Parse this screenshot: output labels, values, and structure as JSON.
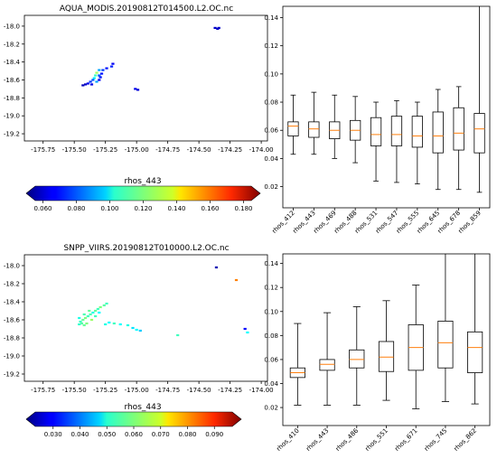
{
  "chart_data": [
    {
      "type": "scatter",
      "title": "AQUA_MODIS.20190812T014500.L2.OC.nc",
      "xlim": [
        -175.9,
        -173.95
      ],
      "ylim": [
        -19.28,
        -17.88
      ],
      "xticks": [
        -175.75,
        -175.5,
        -175.25,
        -175.0,
        -174.75,
        -174.5,
        -174.25,
        -174.0
      ],
      "xtick_labels": [
        "-175.75",
        "-175.50",
        "-175.25",
        "-175.00",
        "-174.75",
        "-174.50",
        "-174.25",
        "-174.00"
      ],
      "yticks": [
        -18.0,
        -18.2,
        -18.4,
        -18.6,
        -18.8,
        -19.0,
        -19.2
      ],
      "ytick_labels": [
        "-18.0",
        "-18.2",
        "-18.4",
        "-18.6",
        "-18.8",
        "-19.0",
        "-19.2"
      ],
      "colorbar": {
        "label": "rhos_443",
        "min": 0.05,
        "max": 0.19,
        "ticks": [
          0.06,
          0.08,
          0.1,
          0.12,
          0.14,
          0.16,
          0.18
        ],
        "tick_labels": [
          "0.060",
          "0.080",
          "0.100",
          "0.120",
          "0.140",
          "0.160",
          "0.180"
        ]
      },
      "points": [
        {
          "x": -174.37,
          "y": -18.02,
          "v": 0.06
        },
        {
          "x": -174.34,
          "y": -18.02,
          "v": 0.06
        },
        {
          "x": -174.35,
          "y": -18.03,
          "v": 0.06
        },
        {
          "x": -175.01,
          "y": -18.7,
          "v": 0.065
        },
        {
          "x": -174.99,
          "y": -18.71,
          "v": 0.062
        },
        {
          "x": -175.19,
          "y": -18.42,
          "v": 0.066
        },
        {
          "x": -175.2,
          "y": -18.45,
          "v": 0.072
        },
        {
          "x": -175.24,
          "y": -18.47,
          "v": 0.07
        },
        {
          "x": -175.27,
          "y": -18.49,
          "v": 0.075
        },
        {
          "x": -175.3,
          "y": -18.49,
          "v": 0.09
        },
        {
          "x": -175.32,
          "y": -18.52,
          "v": 0.125
        },
        {
          "x": -175.33,
          "y": -18.55,
          "v": 0.11
        },
        {
          "x": -175.3,
          "y": -18.55,
          "v": 0.08
        },
        {
          "x": -175.28,
          "y": -18.53,
          "v": 0.07
        },
        {
          "x": -175.34,
          "y": -18.58,
          "v": 0.1
        },
        {
          "x": -175.35,
          "y": -18.6,
          "v": 0.08
        },
        {
          "x": -175.32,
          "y": -18.62,
          "v": 0.09
        },
        {
          "x": -175.37,
          "y": -18.62,
          "v": 0.075
        },
        {
          "x": -175.39,
          "y": -18.64,
          "v": 0.065
        },
        {
          "x": -175.41,
          "y": -18.65,
          "v": 0.06
        },
        {
          "x": -175.43,
          "y": -18.66,
          "v": 0.058
        },
        {
          "x": -175.36,
          "y": -18.65,
          "v": 0.064
        },
        {
          "x": -175.3,
          "y": -18.6,
          "v": 0.066
        },
        {
          "x": -175.29,
          "y": -18.57,
          "v": 0.07
        }
      ]
    },
    {
      "type": "box",
      "categories": [
        "rhos_412",
        "rhos_443",
        "rhos_469",
        "rhos_488",
        "rhos_531",
        "rhos_547",
        "rhos_555",
        "rhos_645",
        "rhos_678",
        "rhos_859"
      ],
      "ylim": [
        0.005,
        0.148
      ],
      "yticks": [
        0.02,
        0.04,
        0.06,
        0.08,
        0.1,
        0.12,
        0.14
      ],
      "ytick_labels": [
        "0.02",
        "0.04",
        "0.06",
        "0.08",
        "0.10",
        "0.12",
        "0.14"
      ],
      "boxes": [
        {
          "whislo": 0.043,
          "q1": 0.056,
          "med": 0.063,
          "q3": 0.066,
          "whishi": 0.085
        },
        {
          "whislo": 0.043,
          "q1": 0.055,
          "med": 0.061,
          "q3": 0.066,
          "whishi": 0.087
        },
        {
          "whislo": 0.04,
          "q1": 0.054,
          "med": 0.06,
          "q3": 0.066,
          "whishi": 0.085
        },
        {
          "whislo": 0.037,
          "q1": 0.053,
          "med": 0.06,
          "q3": 0.067,
          "whishi": 0.084
        },
        {
          "whislo": 0.024,
          "q1": 0.049,
          "med": 0.057,
          "q3": 0.069,
          "whishi": 0.08
        },
        {
          "whislo": 0.023,
          "q1": 0.049,
          "med": 0.057,
          "q3": 0.07,
          "whishi": 0.081
        },
        {
          "whislo": 0.022,
          "q1": 0.048,
          "med": 0.056,
          "q3": 0.07,
          "whishi": 0.08
        },
        {
          "whislo": 0.018,
          "q1": 0.044,
          "med": 0.056,
          "q3": 0.073,
          "whishi": 0.089
        },
        {
          "whislo": 0.018,
          "q1": 0.046,
          "med": 0.058,
          "q3": 0.076,
          "whishi": 0.091
        },
        {
          "whislo": 0.016,
          "q1": 0.044,
          "med": 0.061,
          "q3": 0.072,
          "whishi": 0.15
        }
      ]
    },
    {
      "type": "scatter",
      "title": "SNPP_VIIRS.20190812T010000.L2.OC.nc",
      "xlim": [
        -175.9,
        -173.95
      ],
      "ylim": [
        -19.28,
        -17.88
      ],
      "xticks": [
        -175.75,
        -175.5,
        -175.25,
        -175.0,
        -174.75,
        -174.5,
        -174.25,
        -174.0
      ],
      "xtick_labels": [
        "-175.75",
        "-175.50",
        "-175.25",
        "-175.00",
        "-174.75",
        "-174.50",
        "-174.25",
        "-174.00"
      ],
      "yticks": [
        -18.0,
        -18.2,
        -18.4,
        -18.6,
        -18.8,
        -19.0,
        -19.2
      ],
      "ytick_labels": [
        "-18.0",
        "-18.2",
        "-18.4",
        "-18.6",
        "-18.8",
        "-19.0",
        "-19.2"
      ],
      "colorbar": {
        "label": "rhos_443",
        "min": 0.02,
        "max": 0.1,
        "ticks": [
          0.03,
          0.04,
          0.05,
          0.06,
          0.07,
          0.08,
          0.09
        ],
        "tick_labels": [
          "0.030",
          "0.040",
          "0.050",
          "0.060",
          "0.070",
          "0.080",
          "0.090"
        ]
      },
      "points": [
        {
          "x": -174.36,
          "y": -18.02,
          "v": 0.024
        },
        {
          "x": -174.2,
          "y": -18.16,
          "v": 0.08
        },
        {
          "x": -174.13,
          "y": -18.7,
          "v": 0.03
        },
        {
          "x": -174.11,
          "y": -18.74,
          "v": 0.05
        },
        {
          "x": -174.67,
          "y": -18.77,
          "v": 0.055
        },
        {
          "x": -175.24,
          "y": -18.42,
          "v": 0.055
        },
        {
          "x": -175.26,
          "y": -18.44,
          "v": 0.057
        },
        {
          "x": -175.29,
          "y": -18.46,
          "v": 0.06
        },
        {
          "x": -175.31,
          "y": -18.48,
          "v": 0.055
        },
        {
          "x": -175.33,
          "y": -18.5,
          "v": 0.058
        },
        {
          "x": -175.35,
          "y": -18.52,
          "v": 0.052
        },
        {
          "x": -175.37,
          "y": -18.54,
          "v": 0.056
        },
        {
          "x": -175.39,
          "y": -18.56,
          "v": 0.055
        },
        {
          "x": -175.41,
          "y": -18.58,
          "v": 0.06
        },
        {
          "x": -175.43,
          "y": -18.6,
          "v": 0.058
        },
        {
          "x": -175.45,
          "y": -18.62,
          "v": 0.055
        },
        {
          "x": -175.44,
          "y": -18.64,
          "v": 0.057
        },
        {
          "x": -175.4,
          "y": -18.64,
          "v": 0.06
        },
        {
          "x": -175.36,
          "y": -18.6,
          "v": 0.062
        },
        {
          "x": -175.33,
          "y": -18.56,
          "v": 0.055
        },
        {
          "x": -175.3,
          "y": -18.52,
          "v": 0.05
        },
        {
          "x": -175.38,
          "y": -18.5,
          "v": 0.058
        },
        {
          "x": -175.42,
          "y": -18.54,
          "v": 0.056
        },
        {
          "x": -175.46,
          "y": -18.58,
          "v": 0.052
        },
        {
          "x": -175.46,
          "y": -18.65,
          "v": 0.054
        },
        {
          "x": -175.42,
          "y": -18.66,
          "v": 0.058
        },
        {
          "x": -175.25,
          "y": -18.65,
          "v": 0.052
        },
        {
          "x": -175.22,
          "y": -18.63,
          "v": 0.05
        },
        {
          "x": -175.18,
          "y": -18.64,
          "v": 0.055
        },
        {
          "x": -175.13,
          "y": -18.65,
          "v": 0.05
        },
        {
          "x": -175.07,
          "y": -18.66,
          "v": 0.052
        },
        {
          "x": -175.03,
          "y": -18.69,
          "v": 0.048
        },
        {
          "x": -175.0,
          "y": -18.71,
          "v": 0.05
        },
        {
          "x": -174.97,
          "y": -18.72,
          "v": 0.046
        }
      ]
    },
    {
      "type": "box",
      "categories": [
        "rhos_410",
        "rhos_443",
        "rhos_486",
        "rhos_551",
        "rhos_671",
        "rhos_745",
        "rhos_862"
      ],
      "ylim": [
        0.005,
        0.148
      ],
      "yticks": [
        0.02,
        0.04,
        0.06,
        0.08,
        0.1,
        0.12,
        0.14
      ],
      "ytick_labels": [
        "0.02",
        "0.04",
        "0.06",
        "0.08",
        "0.10",
        "0.12",
        "0.14"
      ],
      "boxes": [
        {
          "whislo": 0.022,
          "q1": 0.045,
          "med": 0.049,
          "q3": 0.053,
          "whishi": 0.09
        },
        {
          "whislo": 0.022,
          "q1": 0.051,
          "med": 0.056,
          "q3": 0.06,
          "whishi": 0.099
        },
        {
          "whislo": 0.022,
          "q1": 0.053,
          "med": 0.06,
          "q3": 0.068,
          "whishi": 0.104
        },
        {
          "whislo": 0.026,
          "q1": 0.05,
          "med": 0.062,
          "q3": 0.075,
          "whishi": 0.109
        },
        {
          "whislo": 0.019,
          "q1": 0.051,
          "med": 0.07,
          "q3": 0.089,
          "whishi": 0.122
        },
        {
          "whislo": 0.025,
          "q1": 0.053,
          "med": 0.074,
          "q3": 0.092,
          "whishi": 0.15
        },
        {
          "whislo": 0.023,
          "q1": 0.049,
          "med": 0.07,
          "q3": 0.083,
          "whishi": 0.15
        }
      ]
    }
  ]
}
